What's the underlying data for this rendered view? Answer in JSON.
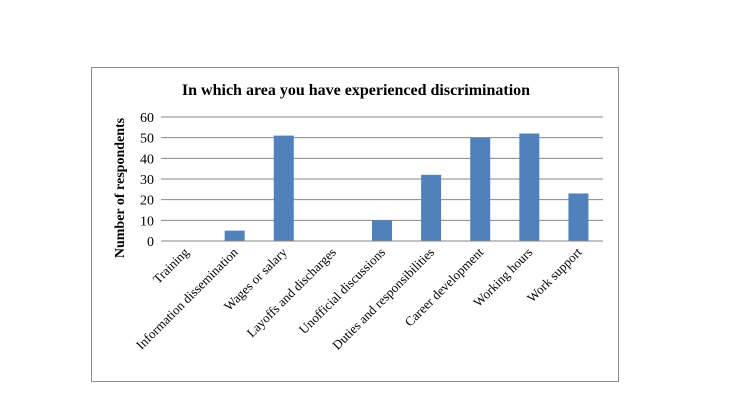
{
  "chart_data": {
    "type": "bar",
    "title": "In which area you have experienced discrimination",
    "xlabel": "",
    "ylabel": "Number of respondents",
    "ylim": [
      0,
      60
    ],
    "yticks": [
      0,
      10,
      20,
      30,
      40,
      50,
      60
    ],
    "grid": true,
    "legend": "none",
    "categories": [
      "Training",
      "Information dissemination",
      "Wages or salary",
      "Layoffs and discharges",
      "Unofficial discussions",
      "Duties and responsibilities",
      "Career development",
      "Working hours",
      "Work support"
    ],
    "values": [
      0,
      5,
      51,
      0,
      10,
      32,
      50,
      52,
      23
    ],
    "colors": {
      "bar": "#4f81bd",
      "grid": "#868686",
      "axis": "#868686"
    }
  }
}
